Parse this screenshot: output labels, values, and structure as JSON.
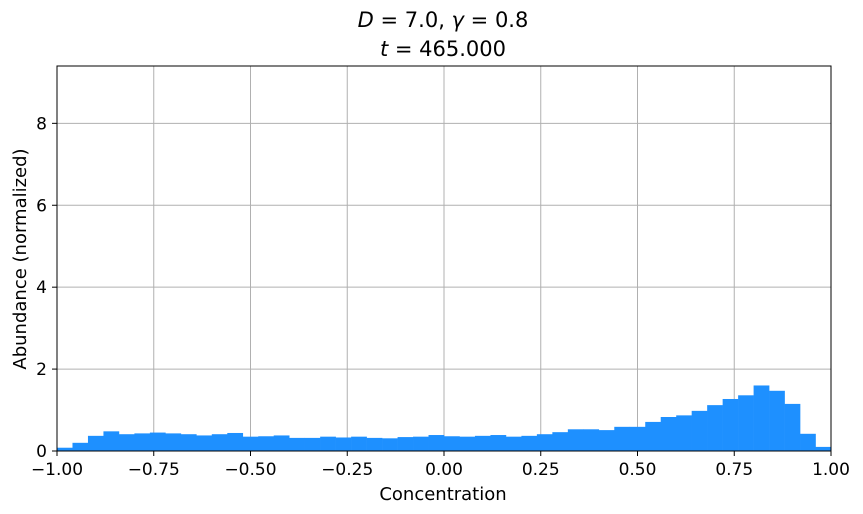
{
  "chart_data": {
    "type": "bar",
    "subtype": "histogram",
    "title_lines": [
      {
        "var_a": "D",
        "eq_a": " = ",
        "val_a": "7.0",
        "sep": ", ",
        "var_b": "γ",
        "eq_b": " = ",
        "val_b": "0.8"
      },
      {
        "var_a": "t",
        "eq_a": " = ",
        "val_a": "465.000"
      }
    ],
    "xlabel": "Concentration",
    "ylabel": "Abundance (normalized)",
    "xlim": [
      -1.0,
      1.0
    ],
    "ylim": [
      0,
      9.4
    ],
    "xticks": [
      -1.0,
      -0.75,
      -0.5,
      -0.25,
      0.0,
      0.25,
      0.5,
      0.75,
      1.0
    ],
    "xtick_labels": [
      "−1.00",
      "−0.75",
      "−0.50",
      "−0.25",
      "0.00",
      "0.25",
      "0.50",
      "0.75",
      "1.00"
    ],
    "yticks": [
      0,
      2,
      4,
      6,
      8
    ],
    "ytick_labels": [
      "0",
      "2",
      "4",
      "6",
      "8"
    ],
    "grid": true,
    "bar_color": "#1e90ff",
    "bin_width": 0.04,
    "bin_edges_start": -1.0,
    "values": [
      0.08,
      0.2,
      0.37,
      0.48,
      0.41,
      0.43,
      0.45,
      0.43,
      0.41,
      0.38,
      0.41,
      0.44,
      0.35,
      0.36,
      0.38,
      0.32,
      0.32,
      0.35,
      0.33,
      0.35,
      0.32,
      0.31,
      0.34,
      0.35,
      0.39,
      0.36,
      0.35,
      0.37,
      0.39,
      0.35,
      0.37,
      0.41,
      0.46,
      0.53,
      0.53,
      0.51,
      0.59,
      0.59,
      0.71,
      0.83,
      0.87,
      0.98,
      1.12,
      1.27,
      1.36,
      1.6,
      1.47,
      1.15,
      0.42,
      0.1
    ]
  }
}
